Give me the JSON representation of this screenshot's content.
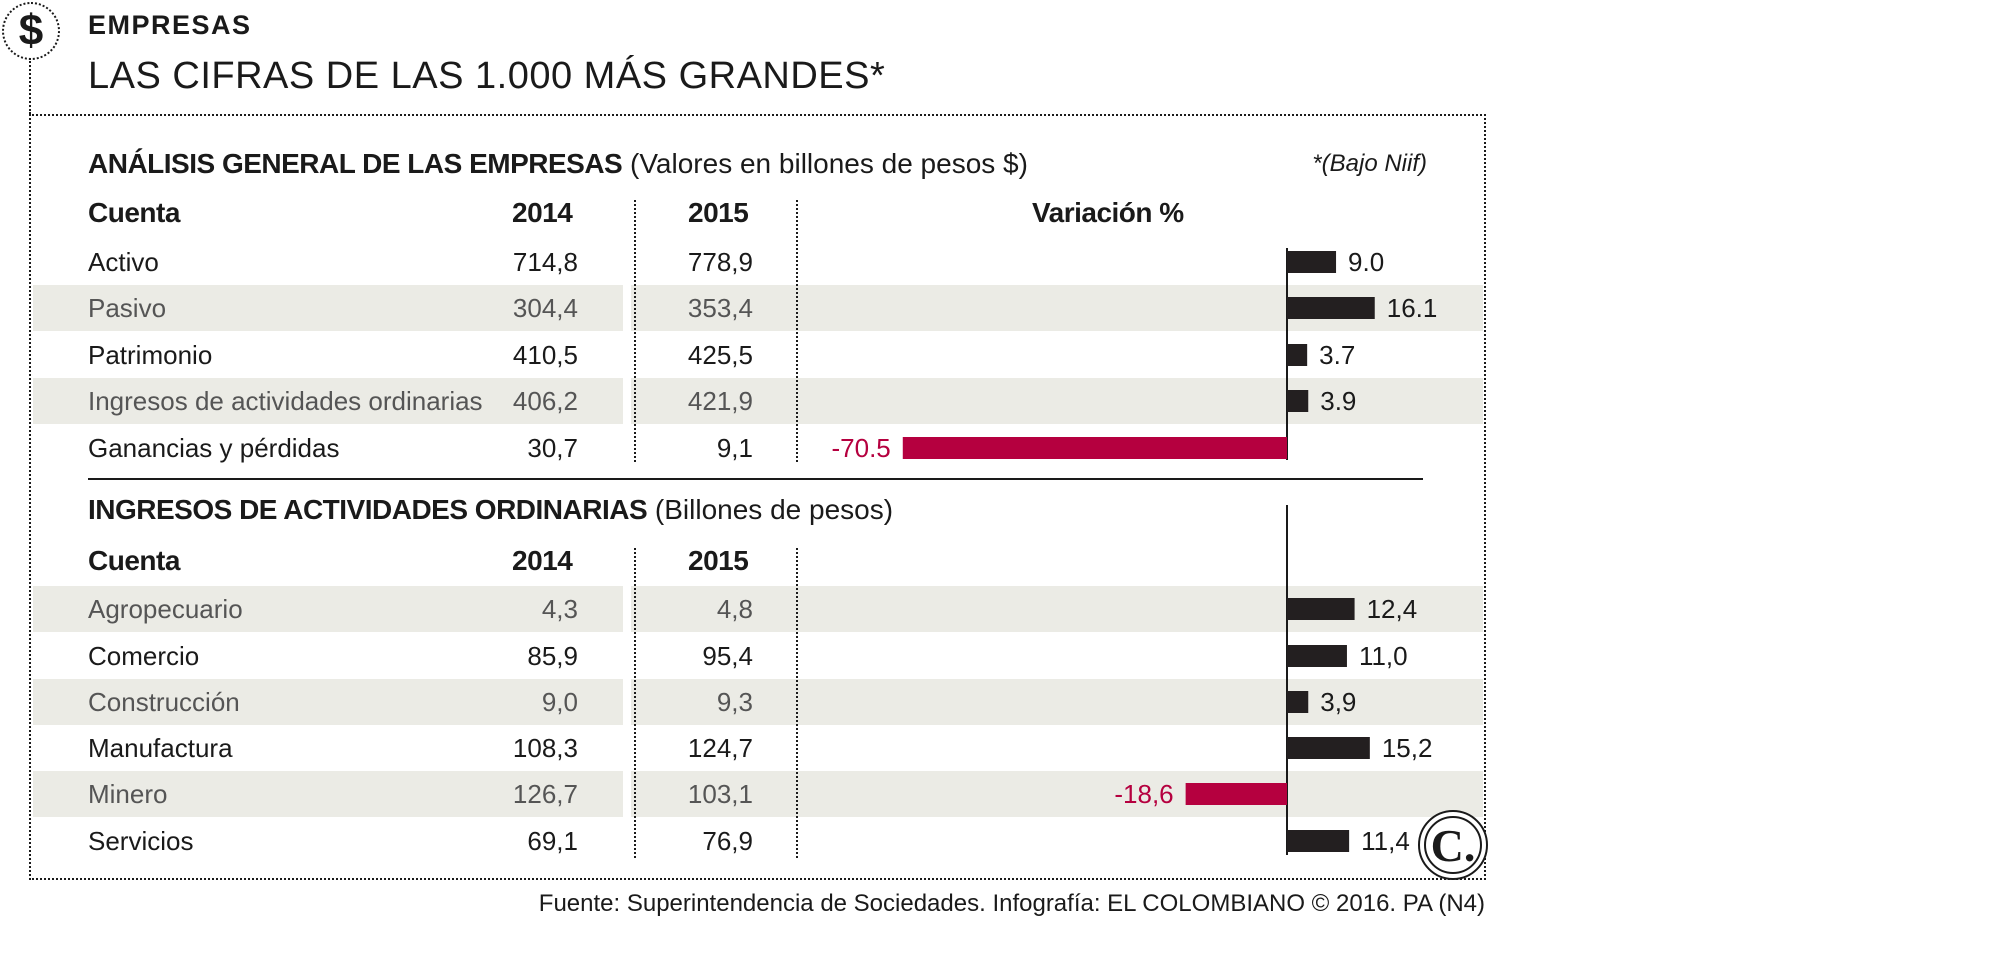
{
  "header": {
    "kicker": "EMPRESAS",
    "title": "LAS CIFRAS DE LAS 1.000 MÁS GRANDES*",
    "badge_symbol": "$"
  },
  "table1": {
    "title_bold": "ANÁLISIS GENERAL DE LAS EMPRESAS",
    "title_rest": " (Valores en billones de pesos $)",
    "note": "*(Bajo Niif)",
    "col_cuenta": "Cuenta",
    "col_2014": "2014",
    "col_2015": "2015",
    "col_variacion": "Variación %",
    "rows": [
      {
        "name": "Activo",
        "v2014": "714,8",
        "v2015": "778,9",
        "var_label": "9.0"
      },
      {
        "name": "Pasivo",
        "v2014": "304,4",
        "v2015": "353,4",
        "var_label": "16.1"
      },
      {
        "name": "Patrimonio",
        "v2014": "410,5",
        "v2015": "425,5",
        "var_label": "3.7"
      },
      {
        "name": "Ingresos de actividades ordinarias",
        "v2014": "406,2",
        "v2015": "421,9",
        "var_label": "3.9"
      },
      {
        "name": "Ganancias y pérdidas",
        "v2014": "30,7",
        "v2015": "9,1",
        "var_label": "-70.5"
      }
    ]
  },
  "table2": {
    "title_bold": "INGRESOS DE ACTIVIDADES ORDINARIAS",
    "title_rest": " (Billones de pesos)",
    "col_cuenta": "Cuenta",
    "col_2014": "2014",
    "col_2015": "2015",
    "rows": [
      {
        "name": "Agropecuario",
        "v2014": "4,3",
        "v2015": "4,8",
        "var_label": "12,4"
      },
      {
        "name": "Comercio",
        "v2014": "85,9",
        "v2015": "95,4",
        "var_label": "11,0"
      },
      {
        "name": "Construcción",
        "v2014": "9,0",
        "v2015": "9,3",
        "var_label": "3,9"
      },
      {
        "name": "Manufactura",
        "v2014": "108,3",
        "v2015": "124,7",
        "var_label": "15,2"
      },
      {
        "name": "Minero",
        "v2014": "126,7",
        "v2015": "103,1",
        "var_label": "-18,6"
      },
      {
        "name": "Servicios",
        "v2014": "69,1",
        "v2015": "76,9",
        "var_label": "11,4"
      }
    ]
  },
  "chart_data": [
    {
      "type": "bar",
      "orientation": "horizontal",
      "title": "ANÁLISIS GENERAL DE LAS EMPRESAS",
      "xlabel": "Variación %",
      "categories": [
        "Activo",
        "Pasivo",
        "Patrimonio",
        "Ingresos de actividades ordinarias",
        "Ganancias y pérdidas"
      ],
      "values": [
        9.0,
        16.1,
        3.7,
        3.9,
        -70.5
      ]
    },
    {
      "type": "bar",
      "orientation": "horizontal",
      "title": "INGRESOS DE ACTIVIDADES ORDINARIAS",
      "categories": [
        "Agropecuario",
        "Comercio",
        "Construcción",
        "Manufactura",
        "Minero",
        "Servicios"
      ],
      "values": [
        12.4,
        11.0,
        3.9,
        15.2,
        -18.6,
        11.4
      ]
    }
  ],
  "colors": {
    "positive_bar": "#231f20",
    "negative_bar": "#b5003f",
    "band": "#ebebe5"
  },
  "logo_text": "C.",
  "source": "Fuente: Superintendencia de Sociedades. Infografía: EL COLOMBIANO © 2016. PA (N4)"
}
